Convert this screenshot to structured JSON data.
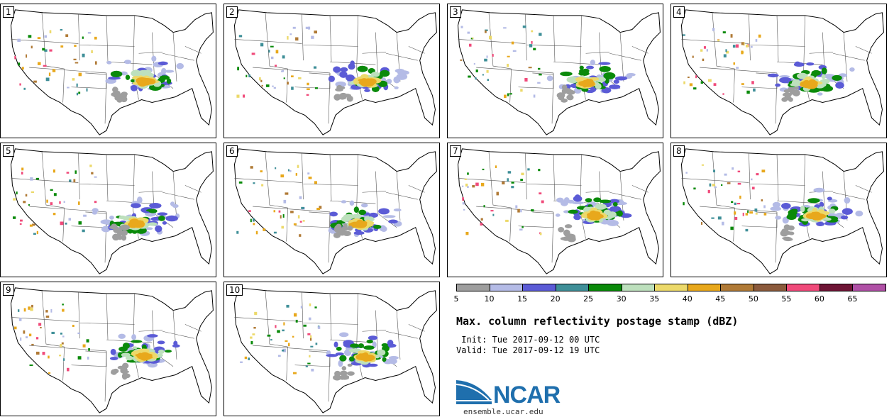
{
  "panels": [
    {
      "label": "1"
    },
    {
      "label": "2"
    },
    {
      "label": "3"
    },
    {
      "label": "4"
    },
    {
      "label": "5"
    },
    {
      "label": "6"
    },
    {
      "label": "7"
    },
    {
      "label": "8"
    },
    {
      "label": "9"
    },
    {
      "label": "10"
    }
  ],
  "legend": {
    "colors": [
      "#9e9e9e",
      "#b4bbe6",
      "#5b5bd6",
      "#3f8f98",
      "#0a8a0a",
      "#bde0bd",
      "#ecd96a",
      "#e8a81c",
      "#b07a36",
      "#8b5a3c",
      "#f04a7a",
      "#6e1535",
      "#b050a6"
    ],
    "ticks": [
      "5",
      "10",
      "15",
      "20",
      "25",
      "30",
      "35",
      "40",
      "45",
      "50",
      "55",
      "60",
      "65"
    ]
  },
  "title": "Max. column reflectivity postage stamp (dBZ)",
  "init": " Init: Tue 2017-09-12 00 UTC",
  "valid": "Valid: Tue 2017-09-12 19 UTC",
  "logo": {
    "text": "NCAR"
  },
  "website": "ensemble.ucar.edu"
}
